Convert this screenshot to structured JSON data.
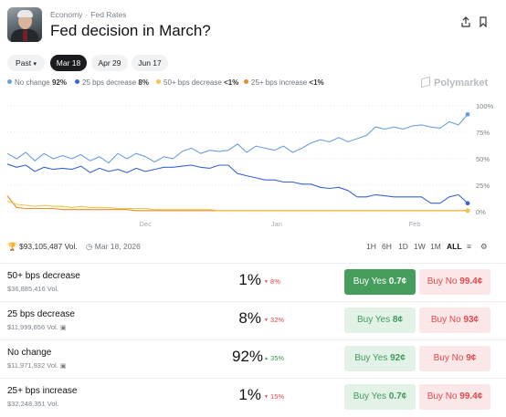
{
  "header": {
    "breadcrumb": [
      "Economy",
      "Fed Rates"
    ],
    "breadcrumb_separator": "·",
    "title": "Fed decision in March?",
    "icons": [
      "share-icon",
      "bookmark-icon"
    ]
  },
  "filters": {
    "past_label": "Past",
    "dates": [
      {
        "label": "Mar 18",
        "active": true
      },
      {
        "label": "Apr 29",
        "active": false
      },
      {
        "label": "Jun 17",
        "active": false
      }
    ]
  },
  "legend": [
    {
      "name": "No change",
      "value": "92%",
      "color": "#6a9fdf"
    },
    {
      "name": "25 bps decrease",
      "value": "8%",
      "color": "#3a64cf"
    },
    {
      "name": "50+ bps decrease",
      "value": "<1%",
      "color": "#f0c54a"
    },
    {
      "name": "25+ bps increase",
      "value": "<1%",
      "color": "#e68a2e"
    }
  ],
  "brand": "Polymarket",
  "chart_data": {
    "type": "line",
    "x_ticks": [
      "Dec",
      "Jan",
      "Feb"
    ],
    "y_ticks": [
      "100%",
      "75%",
      "50%",
      "25%",
      "0%"
    ],
    "ylim": [
      0,
      100
    ],
    "grid": true,
    "legend_position": "top",
    "x": [
      0,
      2,
      4,
      6,
      8,
      10,
      12,
      14,
      16,
      18,
      20,
      22,
      24,
      26,
      28,
      30,
      32,
      34,
      36,
      38,
      40,
      42,
      44,
      46,
      48,
      50,
      52,
      54,
      56,
      58,
      60,
      62,
      64,
      66,
      68,
      70,
      72,
      74,
      76,
      78,
      80,
      82,
      84,
      86,
      88,
      90,
      92,
      94,
      96,
      98,
      100
    ],
    "series": [
      {
        "name": "No change",
        "color": "#6a9fdf",
        "values": [
          55,
          50,
          56,
          48,
          55,
          50,
          53,
          50,
          54,
          48,
          52,
          46,
          55,
          50,
          55,
          52,
          47,
          52,
          50,
          57,
          60,
          55,
          58,
          57,
          58,
          64,
          56,
          62,
          60,
          58,
          62,
          56,
          60,
          65,
          68,
          66,
          70,
          66,
          69,
          72,
          80,
          78,
          80,
          78,
          81,
          82,
          80,
          79,
          85,
          82,
          92
        ]
      },
      {
        "name": "25 bps decrease",
        "color": "#3a64cf",
        "values": [
          45,
          42,
          44,
          38,
          42,
          40,
          41,
          40,
          43,
          37,
          41,
          38,
          40,
          37,
          41,
          38,
          40,
          42,
          42,
          43,
          44,
          42,
          41,
          44,
          44,
          36,
          34,
          32,
          30,
          30,
          28,
          28,
          26,
          26,
          23,
          22,
          23,
          20,
          14,
          14,
          16,
          15,
          14,
          14,
          14,
          14,
          8,
          8,
          14,
          16,
          8
        ]
      },
      {
        "name": "50+ bps decrease",
        "color": "#f0c54a",
        "values": [
          10,
          7,
          6,
          5,
          6,
          5,
          5,
          4,
          5,
          4,
          4,
          4,
          3,
          3,
          3,
          3,
          2,
          2,
          2,
          2,
          2,
          2,
          2,
          1,
          1,
          1,
          1,
          1,
          1,
          1,
          1,
          1,
          1,
          1,
          1,
          1,
          1,
          1,
          1,
          1,
          1,
          1,
          1,
          1,
          1,
          1,
          1,
          1,
          1,
          1,
          1
        ]
      },
      {
        "name": "25+ bps increase",
        "color": "#e68a2e",
        "values": [
          15,
          4,
          3,
          3,
          3,
          3,
          2,
          2,
          2,
          2,
          2,
          2,
          2,
          2,
          1,
          1,
          1,
          1,
          1,
          1,
          1,
          1,
          1,
          1,
          1,
          1,
          1,
          1,
          1,
          1,
          1,
          1,
          1,
          1,
          1,
          1,
          1,
          1,
          1,
          1,
          1,
          1,
          1,
          1,
          1,
          1,
          1,
          1,
          1,
          1,
          1
        ]
      }
    ]
  },
  "stats": {
    "volume": "$93,105,487 Vol.",
    "date": "Mar 18, 2026",
    "timeframes": [
      {
        "label": "1H",
        "active": false
      },
      {
        "label": "6H",
        "active": false
      },
      {
        "label": "1D",
        "active": false
      },
      {
        "label": "1W",
        "active": false
      },
      {
        "label": "1M",
        "active": false
      },
      {
        "label": "ALL",
        "active": true
      }
    ]
  },
  "outcomes": [
    {
      "label": "50+ bps decrease",
      "volume": "$36,885,416 Vol.",
      "pct": "1%",
      "change": "8%",
      "direction": "down",
      "yes": "0.7¢",
      "no": "99.4¢",
      "yes_solid": true,
      "gift": false
    },
    {
      "label": "25 bps decrease",
      "volume": "$11,999,656 Vol.",
      "pct": "8%",
      "change": "32%",
      "direction": "down",
      "yes": "8¢",
      "no": "93¢",
      "yes_solid": false,
      "gift": true
    },
    {
      "label": "No change",
      "volume": "$11,971,932 Vol.",
      "pct": "92%",
      "change": "35%",
      "direction": "up",
      "yes": "92¢",
      "no": "9¢",
      "yes_solid": false,
      "gift": true
    },
    {
      "label": "25+ bps increase",
      "volume": "$32,248,351 Vol.",
      "pct": "1%",
      "change": "15%",
      "direction": "down",
      "yes": "0.7¢",
      "no": "99.4¢",
      "yes_solid": false,
      "gift": false
    }
  ],
  "labels": {
    "buy_yes": "Buy Yes",
    "buy_no": "Buy No"
  }
}
